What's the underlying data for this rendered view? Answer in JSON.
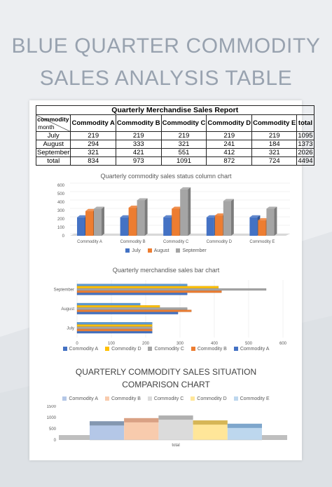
{
  "page": {
    "title_line1": "BLUE QUARTER COMMODITY",
    "title_line2": "SALES ANALYSIS TABLE"
  },
  "table": {
    "caption": "Quarterly Merchandise Sales Report",
    "corner_top": "commodity",
    "corner_bottom": "month",
    "headers": [
      "Commodity A",
      "Commodity B",
      "Commodity C",
      "Commodity D",
      "Commodity E",
      "total"
    ],
    "rows": [
      {
        "label": "July",
        "cells": [
          "219",
          "219",
          "219",
          "219",
          "219",
          "1095"
        ]
      },
      {
        "label": "August",
        "cells": [
          "294",
          "333",
          "321",
          "241",
          "184",
          "1373"
        ]
      },
      {
        "label": "September",
        "cells": [
          "321",
          "421",
          "551",
          "412",
          "321",
          "2026"
        ]
      },
      {
        "label": "total",
        "cells": [
          "834",
          "973",
          "1091",
          "872",
          "724",
          "4494"
        ]
      }
    ]
  },
  "colors": {
    "july": "#4472c4",
    "august": "#ed7d31",
    "september": "#a5a5a5",
    "commodity_a": "#4472c4",
    "commodity_b": "#ed7d31",
    "commodity_c": "#a5a5a5",
    "commodity_d": "#ffc000",
    "commodity_e": "#5b9bd5",
    "title_gray": "#98a2af"
  },
  "chart_data": [
    {
      "type": "bar",
      "title": "Quarterly commodity sales status column chart",
      "categories": [
        "Commodity A",
        "Commodity B",
        "Commodity C",
        "Commodity D",
        "Commodity E"
      ],
      "series": [
        {
          "name": "July",
          "values": [
            219,
            219,
            219,
            219,
            219
          ]
        },
        {
          "name": "August",
          "values": [
            294,
            333,
            321,
            241,
            184
          ]
        },
        {
          "name": "September",
          "values": [
            321,
            421,
            551,
            412,
            321
          ]
        }
      ],
      "yticks": [
        "0",
        "100",
        "200",
        "300",
        "400",
        "500",
        "600"
      ],
      "ylim": [
        0,
        600
      ],
      "legend": "bottom"
    },
    {
      "type": "bar",
      "orientation": "horizontal",
      "title": "Quarterly merchandise sales bar chart",
      "categories": [
        "July",
        "August",
        "September"
      ],
      "series": [
        {
          "name": "Commodity E",
          "values": [
            219,
            184,
            321
          ]
        },
        {
          "name": "Commodity D",
          "values": [
            219,
            241,
            412
          ]
        },
        {
          "name": "Commodity C",
          "values": [
            219,
            321,
            551
          ]
        },
        {
          "name": "Commodity B",
          "values": [
            219,
            333,
            421
          ]
        },
        {
          "name": "Commodity A",
          "values": [
            219,
            294,
            321
          ]
        }
      ],
      "xticks": [
        "0",
        "100",
        "200",
        "300",
        "400",
        "500",
        "600"
      ],
      "xlim": [
        0,
        600
      ],
      "legend": "bottom"
    },
    {
      "type": "bar",
      "title_line1": "QUARTERLY COMMODITY SALES SITUATION",
      "title_line2": "COMPARISON CHART",
      "categories": [
        "total"
      ],
      "series": [
        {
          "name": "Commodity A",
          "values": [
            834
          ]
        },
        {
          "name": "Commodity B",
          "values": [
            973
          ]
        },
        {
          "name": "Commodity C",
          "values": [
            1091
          ]
        },
        {
          "name": "Commodity D",
          "values": [
            872
          ]
        },
        {
          "name": "Commodity E",
          "values": [
            724
          ]
        }
      ],
      "yticks": [
        "0",
        "500",
        "1000",
        "1500"
      ],
      "ylim": [
        0,
        1500
      ],
      "legend": "top"
    }
  ]
}
